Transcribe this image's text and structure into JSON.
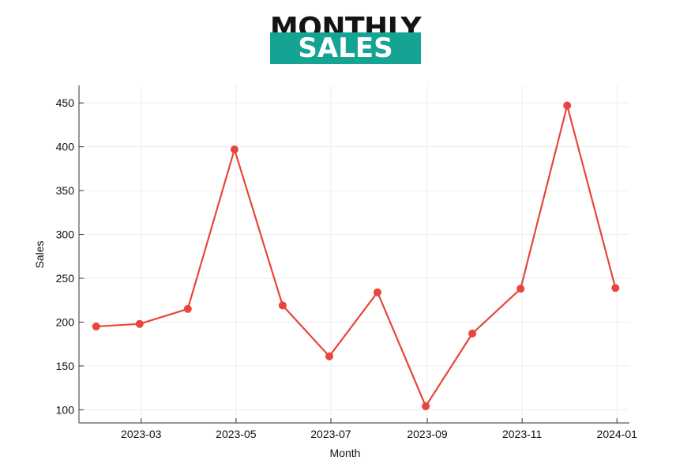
{
  "title": {
    "line1": "MONTHLY",
    "line2": "SALES"
  },
  "colors": {
    "line": "#e8453c",
    "title_box": "#15a394",
    "title_text": "#141414"
  },
  "chart_data": {
    "type": "line",
    "xlabel": "Month",
    "ylabel": "Sales",
    "x": [
      "2023-01-31",
      "2023-02-28",
      "2023-03-31",
      "2023-04-30",
      "2023-05-31",
      "2023-06-30",
      "2023-07-31",
      "2023-08-31",
      "2023-09-30",
      "2023-10-31",
      "2023-11-30",
      "2023-12-31"
    ],
    "values": [
      195,
      198,
      215,
      397,
      219,
      161,
      234,
      104,
      187,
      238,
      447,
      239
    ],
    "x_ticks": [
      "2023-03",
      "2023-05",
      "2023-07",
      "2023-09",
      "2023-11",
      "2024-01"
    ],
    "y_ticks": [
      100,
      150,
      200,
      250,
      300,
      350,
      400,
      450
    ],
    "ylim": [
      85,
      470
    ],
    "xlim": [
      "2023-01-20",
      "2024-01-09"
    ],
    "grid": true,
    "marker": "circle"
  }
}
